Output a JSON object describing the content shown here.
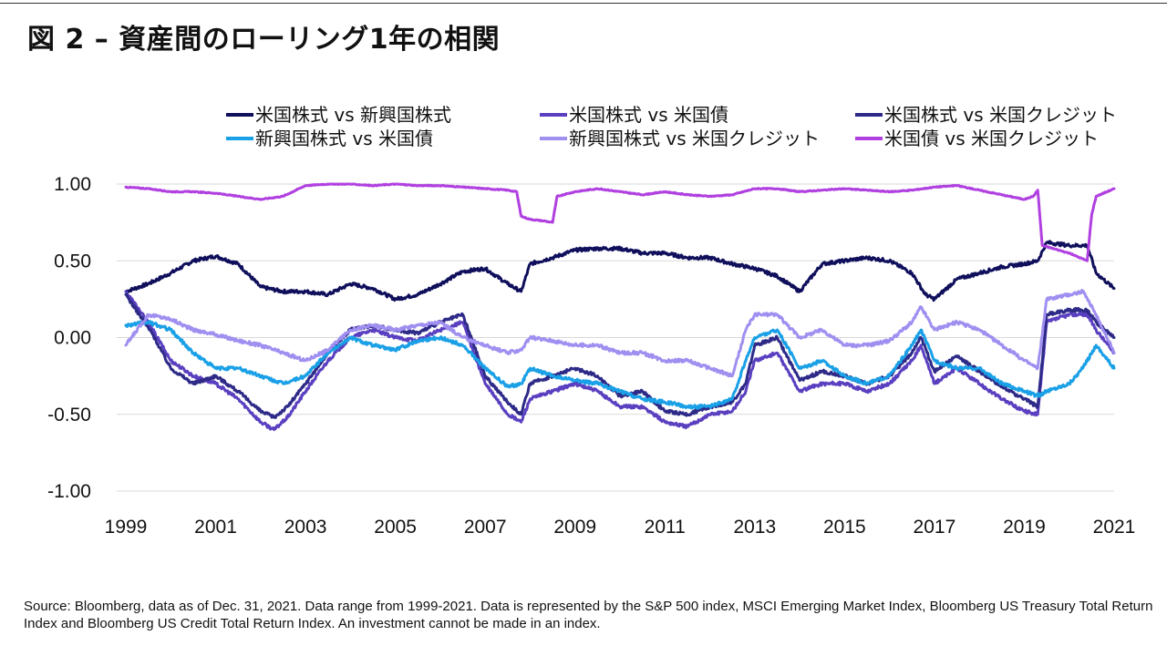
{
  "title": "図 2 – 資産間のローリング1年の相関",
  "source": "Source: Bloomberg, data as of Dec. 31, 2021. Data range from 1999-2021. Data is represented by the S&P 500 index, MSCI Emerging Market Index, Bloomberg US Treasury Total Return Index and Bloomberg US Credit Total Return Index. An investment cannot be made in an index.",
  "chart_data": {
    "type": "line",
    "title": "図 2 – 資産間のローリング1年の相関",
    "xlabel": "",
    "ylabel": "",
    "xlim": [
      1999,
      2021
    ],
    "ylim": [
      -1.0,
      1.0
    ],
    "grid": true,
    "legend_position": "top",
    "x_ticks": [
      "1999",
      "2001",
      "2003",
      "2005",
      "2007",
      "2009",
      "2011",
      "2013",
      "2015",
      "2017",
      "2019",
      "2021"
    ],
    "y_ticks": [
      {
        "value": 1.0,
        "label": "1.00"
      },
      {
        "value": 0.5,
        "label": "0.50"
      },
      {
        "value": 0.0,
        "label": "0.00"
      },
      {
        "value": -0.5,
        "label": "-0.50"
      },
      {
        "value": -1.0,
        "label": "-1.00"
      }
    ],
    "series": [
      {
        "name": "米国株式 vs 新興国株式",
        "color": "#0f0f5c",
        "x": [
          1999.0,
          1999.5,
          2000.0,
          2000.5,
          2001.0,
          2001.5,
          2002.0,
          2002.5,
          2003.0,
          2003.5,
          2004.0,
          2004.5,
          2005.0,
          2005.5,
          2006.0,
          2006.5,
          2007.0,
          2007.5,
          2007.8,
          2008.0,
          2008.5,
          2009.0,
          2009.5,
          2010.0,
          2010.5,
          2011.0,
          2011.5,
          2012.0,
          2012.5,
          2013.0,
          2013.5,
          2014.0,
          2014.5,
          2015.0,
          2015.5,
          2016.0,
          2016.5,
          2016.8,
          2017.0,
          2017.5,
          2018.0,
          2018.5,
          2019.0,
          2019.3,
          2019.5,
          2020.0,
          2020.4,
          2020.6,
          2021.0
        ],
        "values": [
          0.3,
          0.35,
          0.42,
          0.5,
          0.53,
          0.48,
          0.33,
          0.3,
          0.3,
          0.28,
          0.35,
          0.32,
          0.25,
          0.28,
          0.35,
          0.43,
          0.45,
          0.35,
          0.3,
          0.48,
          0.52,
          0.57,
          0.58,
          0.58,
          0.55,
          0.55,
          0.52,
          0.52,
          0.48,
          0.45,
          0.4,
          0.3,
          0.48,
          0.5,
          0.52,
          0.5,
          0.42,
          0.28,
          0.25,
          0.38,
          0.42,
          0.46,
          0.48,
          0.5,
          0.62,
          0.6,
          0.6,
          0.42,
          0.32
        ]
      },
      {
        "name": "米国株式 vs 米国債",
        "color": "#5a3fc0",
        "x": [
          1999.0,
          1999.3,
          1999.6,
          2000.0,
          2000.5,
          2001.0,
          2001.5,
          2002.0,
          2002.3,
          2002.6,
          2003.0,
          2003.5,
          2004.0,
          2004.5,
          2005.0,
          2005.5,
          2006.0,
          2006.5,
          2007.0,
          2007.5,
          2007.8,
          2008.0,
          2008.5,
          2009.0,
          2009.5,
          2010.0,
          2010.5,
          2011.0,
          2011.5,
          2012.0,
          2012.5,
          2012.8,
          2013.0,
          2013.5,
          2014.0,
          2014.5,
          2015.0,
          2015.5,
          2016.0,
          2016.5,
          2016.7,
          2017.0,
          2017.5,
          2018.0,
          2018.5,
          2019.0,
          2019.3,
          2019.5,
          2020.0,
          2020.4,
          2020.6,
          2021.0
        ],
        "values": [
          0.3,
          0.18,
          0.05,
          -0.15,
          -0.25,
          -0.3,
          -0.4,
          -0.55,
          -0.6,
          -0.52,
          -0.35,
          -0.15,
          0.0,
          0.05,
          0.0,
          -0.02,
          0.05,
          0.1,
          -0.3,
          -0.5,
          -0.55,
          -0.4,
          -0.35,
          -0.3,
          -0.35,
          -0.45,
          -0.45,
          -0.55,
          -0.58,
          -0.5,
          -0.48,
          -0.35,
          -0.15,
          -0.1,
          -0.35,
          -0.3,
          -0.3,
          -0.35,
          -0.3,
          -0.15,
          -0.05,
          -0.3,
          -0.2,
          -0.3,
          -0.4,
          -0.48,
          -0.5,
          0.1,
          0.15,
          0.15,
          0.05,
          -0.1
        ]
      },
      {
        "name": "米国株式 vs 米国クレジット",
        "color": "#2e2a88",
        "x": [
          1999.0,
          1999.3,
          1999.6,
          2000.0,
          2000.5,
          2001.0,
          2001.5,
          2002.0,
          2002.3,
          2002.6,
          2003.0,
          2003.5,
          2004.0,
          2004.5,
          2005.0,
          2005.5,
          2006.0,
          2006.5,
          2007.0,
          2007.5,
          2007.8,
          2008.0,
          2008.5,
          2009.0,
          2009.5,
          2010.0,
          2010.5,
          2011.0,
          2011.5,
          2012.0,
          2012.5,
          2012.8,
          2013.0,
          2013.5,
          2014.0,
          2014.5,
          2015.0,
          2015.5,
          2016.0,
          2016.5,
          2016.7,
          2017.0,
          2017.5,
          2018.0,
          2018.5,
          2019.0,
          2019.3,
          2019.5,
          2020.0,
          2020.4,
          2020.6,
          2021.0
        ],
        "values": [
          0.28,
          0.15,
          0.02,
          -0.2,
          -0.3,
          -0.25,
          -0.35,
          -0.48,
          -0.52,
          -0.45,
          -0.3,
          -0.1,
          0.05,
          0.08,
          0.05,
          0.03,
          0.1,
          0.15,
          -0.25,
          -0.42,
          -0.5,
          -0.3,
          -0.25,
          -0.2,
          -0.25,
          -0.38,
          -0.35,
          -0.48,
          -0.5,
          -0.45,
          -0.42,
          -0.3,
          -0.05,
          0.0,
          -0.28,
          -0.22,
          -0.25,
          -0.3,
          -0.25,
          -0.1,
          0.0,
          -0.22,
          -0.12,
          -0.22,
          -0.32,
          -0.4,
          -0.45,
          0.15,
          0.18,
          0.18,
          0.1,
          0.0
        ]
      },
      {
        "name": "新興国株式 vs 米国債",
        "color": "#1aa0e6",
        "x": [
          1999.0,
          1999.5,
          2000.0,
          2000.5,
          2001.0,
          2001.5,
          2002.0,
          2002.5,
          2003.0,
          2003.5,
          2004.0,
          2004.5,
          2005.0,
          2005.5,
          2006.0,
          2006.5,
          2007.0,
          2007.5,
          2007.8,
          2008.0,
          2008.5,
          2009.0,
          2009.5,
          2010.0,
          2010.5,
          2011.0,
          2011.5,
          2012.0,
          2012.5,
          2012.8,
          2013.0,
          2013.5,
          2014.0,
          2014.5,
          2015.0,
          2015.5,
          2016.0,
          2016.5,
          2016.7,
          2017.0,
          2017.5,
          2018.0,
          2018.5,
          2019.0,
          2019.3,
          2019.5,
          2020.0,
          2020.3,
          2020.6,
          2021.0
        ],
        "values": [
          0.08,
          0.1,
          0.05,
          -0.1,
          -0.2,
          -0.2,
          -0.25,
          -0.3,
          -0.25,
          -0.1,
          0.0,
          -0.05,
          -0.08,
          -0.02,
          0.0,
          -0.05,
          -0.2,
          -0.32,
          -0.3,
          -0.2,
          -0.25,
          -0.28,
          -0.3,
          -0.35,
          -0.4,
          -0.42,
          -0.45,
          -0.45,
          -0.4,
          -0.15,
          0.0,
          0.05,
          -0.2,
          -0.15,
          -0.25,
          -0.3,
          -0.25,
          -0.05,
          0.05,
          -0.15,
          -0.2,
          -0.2,
          -0.3,
          -0.35,
          -0.38,
          -0.35,
          -0.3,
          -0.2,
          -0.05,
          -0.2
        ]
      },
      {
        "name": "新興国株式 vs 米国クレジット",
        "color": "#a08ff0",
        "x": [
          1999.0,
          1999.5,
          2000.0,
          2000.5,
          2001.0,
          2001.5,
          2002.0,
          2002.5,
          2003.0,
          2003.5,
          2004.0,
          2004.5,
          2005.0,
          2005.5,
          2006.0,
          2006.5,
          2007.0,
          2007.5,
          2007.8,
          2008.0,
          2008.5,
          2009.0,
          2009.5,
          2010.0,
          2010.5,
          2011.0,
          2011.5,
          2012.0,
          2012.5,
          2012.8,
          2013.0,
          2013.5,
          2014.0,
          2014.5,
          2015.0,
          2015.5,
          2016.0,
          2016.5,
          2016.7,
          2017.0,
          2017.5,
          2018.0,
          2018.5,
          2019.0,
          2019.3,
          2019.5,
          2020.0,
          2020.3,
          2020.6,
          2021.0
        ],
        "values": [
          -0.05,
          0.15,
          0.12,
          0.05,
          0.02,
          -0.02,
          -0.05,
          -0.1,
          -0.15,
          -0.08,
          0.05,
          0.08,
          0.05,
          0.08,
          0.1,
          0.0,
          -0.05,
          -0.1,
          -0.08,
          0.0,
          -0.02,
          -0.05,
          -0.05,
          -0.1,
          -0.1,
          -0.15,
          -0.15,
          -0.2,
          -0.25,
          0.05,
          0.15,
          0.15,
          0.0,
          0.05,
          -0.05,
          -0.05,
          -0.02,
          0.1,
          0.2,
          0.05,
          0.1,
          0.05,
          -0.05,
          -0.15,
          -0.2,
          0.25,
          0.28,
          0.3,
          0.15,
          -0.1
        ]
      },
      {
        "name": "米国債 vs 米国クレジット",
        "color": "#b040e0",
        "x": [
          1999.0,
          1999.5,
          2000.0,
          2000.5,
          2001.0,
          2001.5,
          2002.0,
          2002.5,
          2003.0,
          2003.5,
          2004.0,
          2004.5,
          2005.0,
          2005.5,
          2006.0,
          2006.5,
          2007.0,
          2007.5,
          2007.7,
          2007.8,
          2008.0,
          2008.3,
          2008.5,
          2008.6,
          2009.0,
          2009.5,
          2010.0,
          2010.5,
          2011.0,
          2011.5,
          2012.0,
          2012.5,
          2013.0,
          2013.5,
          2014.0,
          2014.5,
          2015.0,
          2015.5,
          2016.0,
          2016.5,
          2017.0,
          2017.5,
          2018.0,
          2018.5,
          2019.0,
          2019.2,
          2019.3,
          2019.4,
          2020.0,
          2020.4,
          2020.5,
          2020.6,
          2021.0
        ],
        "values": [
          0.98,
          0.97,
          0.95,
          0.95,
          0.94,
          0.92,
          0.9,
          0.92,
          0.99,
          1.0,
          1.0,
          0.99,
          1.0,
          0.99,
          0.99,
          0.98,
          0.97,
          0.96,
          0.95,
          0.79,
          0.77,
          0.76,
          0.75,
          0.92,
          0.95,
          0.97,
          0.95,
          0.93,
          0.95,
          0.93,
          0.92,
          0.93,
          0.97,
          0.97,
          0.95,
          0.96,
          0.97,
          0.96,
          0.95,
          0.96,
          0.98,
          0.99,
          0.96,
          0.93,
          0.9,
          0.92,
          0.96,
          0.6,
          0.55,
          0.5,
          0.8,
          0.92,
          0.97
        ]
      }
    ]
  }
}
